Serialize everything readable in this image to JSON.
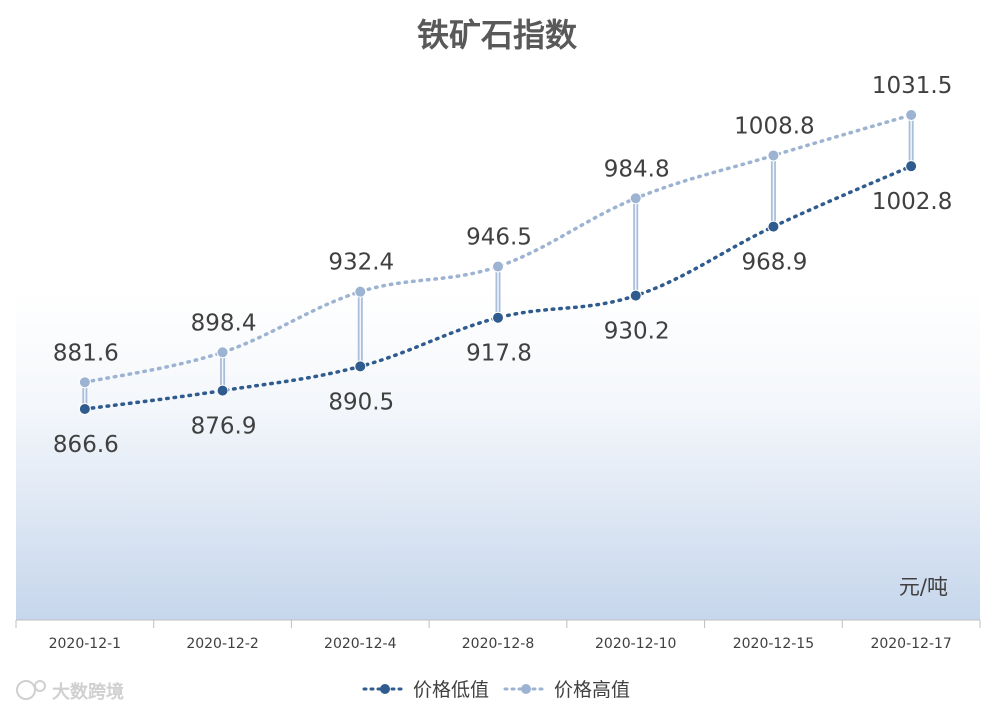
{
  "chart_data": {
    "type": "line",
    "title": "铁矿石指数",
    "unit_label": "元/吨",
    "categories": [
      "2020-12-1",
      "2020-12-2",
      "2020-12-4",
      "2020-12-8",
      "2020-12-10",
      "2020-12-15",
      "2020-12-17"
    ],
    "series": [
      {
        "name": "价格低值",
        "values": [
          866.6,
          876.9,
          890.5,
          917.8,
          930.2,
          968.9,
          1002.8
        ],
        "color": "#2f5b8e"
      },
      {
        "name": "价格高值",
        "values": [
          881.6,
          898.4,
          932.4,
          946.5,
          984.8,
          1008.8,
          1031.5
        ],
        "color": "#9db3d2"
      }
    ],
    "high_low_lines": true,
    "grid": false,
    "legend_position": "bottom"
  },
  "watermark_text": "大数跨境"
}
